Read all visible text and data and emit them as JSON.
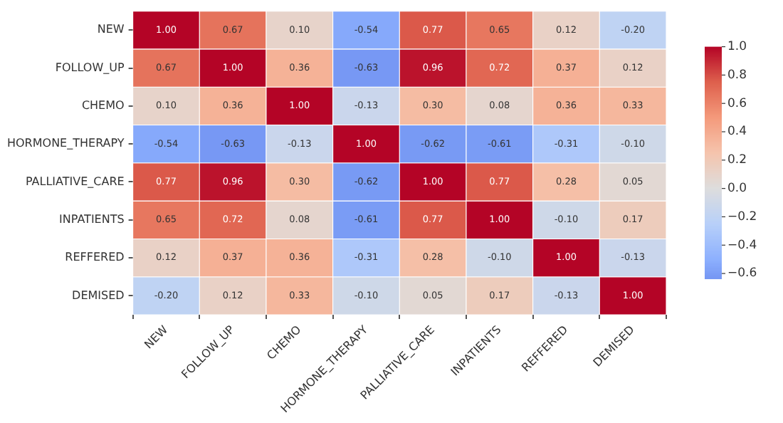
{
  "chart_data": {
    "type": "heatmap",
    "categories": [
      "NEW",
      "FOLLOW_UP",
      "CHEMO",
      "HORMONE_THERAPY",
      "PALLIATIVE_CARE",
      "INPATIENTS",
      "REFFERED",
      "DEMISED"
    ],
    "y_categories": [
      "NEW",
      "FOLLOW_UP",
      "CHEMO",
      "HORMONE_THERAPY",
      "PALLIATIVE_CARE",
      "INPATIENTS",
      "REFFERED",
      "DEMISED"
    ],
    "cells": [
      [
        1.0,
        0.67,
        0.1,
        -0.54,
        0.77,
        0.65,
        0.12,
        -0.2
      ],
      [
        0.67,
        1.0,
        0.36,
        -0.63,
        0.96,
        0.72,
        0.37,
        0.12
      ],
      [
        0.1,
        0.36,
        1.0,
        -0.13,
        0.3,
        0.08,
        0.36,
        0.33
      ],
      [
        -0.54,
        -0.63,
        -0.13,
        1.0,
        -0.62,
        -0.61,
        -0.31,
        -0.1
      ],
      [
        0.77,
        0.96,
        0.3,
        -0.62,
        1.0,
        0.77,
        0.28,
        0.05
      ],
      [
        0.65,
        0.72,
        0.08,
        -0.61,
        0.77,
        1.0,
        -0.1,
        0.17
      ],
      [
        0.12,
        0.37,
        0.36,
        -0.31,
        0.28,
        -0.1,
        1.0,
        -0.13
      ],
      [
        -0.2,
        0.12,
        0.33,
        -0.1,
        0.05,
        0.17,
        -0.13,
        1.0
      ]
    ],
    "cell_labels": [
      [
        "1.00",
        "0.67",
        "0.10",
        "-0.54",
        "0.77",
        "0.65",
        "0.12",
        "-0.20"
      ],
      [
        "0.67",
        "1.00",
        "0.36",
        "-0.63",
        "0.96",
        "0.72",
        "0.37",
        "0.12"
      ],
      [
        "0.10",
        "0.36",
        "1.00",
        "-0.13",
        "0.30",
        "0.08",
        "0.36",
        "0.33"
      ],
      [
        "-0.54",
        "-0.63",
        "-0.13",
        "1.00",
        "-0.62",
        "-0.61",
        "-0.31",
        "-0.10"
      ],
      [
        "0.77",
        "0.96",
        "0.30",
        "-0.62",
        "1.00",
        "0.77",
        "0.28",
        "0.05"
      ],
      [
        "0.65",
        "0.72",
        "0.08",
        "-0.61",
        "0.77",
        "1.00",
        "-0.10",
        "0.17"
      ],
      [
        "0.12",
        "0.37",
        "0.36",
        "-0.31",
        "0.28",
        "-0.10",
        "1.00",
        "-0.13"
      ],
      [
        "-0.20",
        "0.12",
        "0.33",
        "-0.10",
        "0.05",
        "0.17",
        "-0.13",
        "1.00"
      ]
    ],
    "clim": [
      -0.63,
      1.0
    ],
    "cticks": [
      {
        "value": 1.0,
        "label": "1.0"
      },
      {
        "value": 0.8,
        "label": "0.8"
      },
      {
        "value": 0.6,
        "label": "0.6"
      },
      {
        "value": 0.4,
        "label": "0.4"
      },
      {
        "value": 0.2,
        "label": "0.2"
      },
      {
        "value": 0.0,
        "label": "0.0"
      },
      {
        "value": -0.2,
        "label": "−0.2"
      },
      {
        "value": -0.4,
        "label": "−0.4"
      },
      {
        "value": -0.6,
        "label": "−0.6"
      }
    ],
    "data_labels": true
  }
}
